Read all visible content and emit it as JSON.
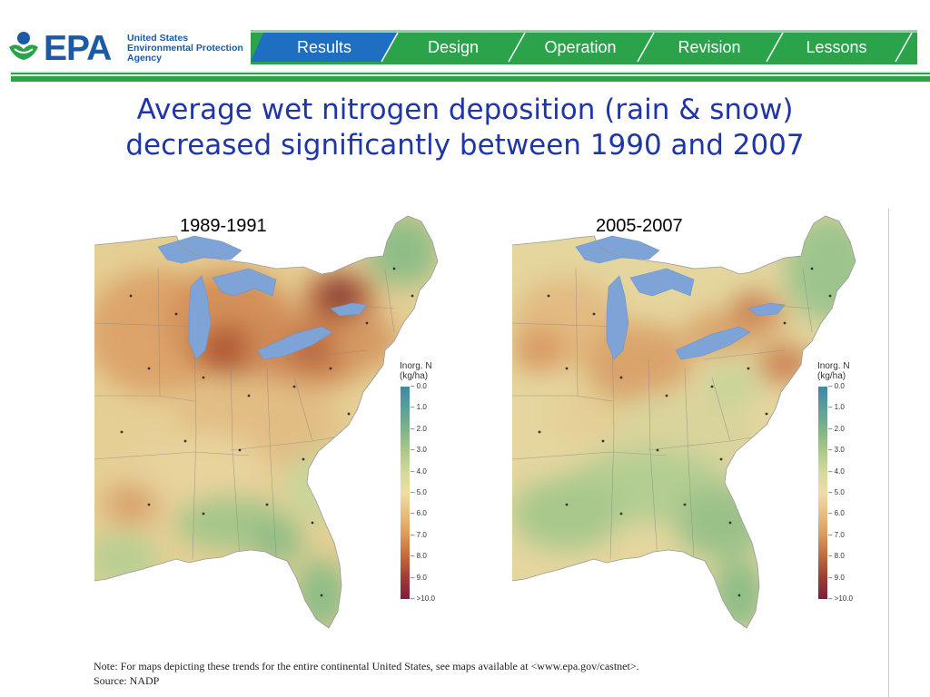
{
  "logo": {
    "word": "EPA",
    "lines": [
      "United States",
      "Environmental Protection",
      "Agency"
    ]
  },
  "nav": {
    "items": [
      "Results",
      "Design",
      "Operation",
      "Revision",
      "Lessons"
    ],
    "active_index": 0,
    "colors": {
      "active": "#1e6fc2",
      "inactive": "#2aa34a",
      "rule": "#2aa34a"
    }
  },
  "title": {
    "line1": "Average wet nitrogen deposition (rain & snow)",
    "line2": "decreased significantly between 1990 and 2007"
  },
  "maps": [
    {
      "label": "1989-1991"
    },
    {
      "label": "2005-2007"
    }
  ],
  "legend": {
    "title_line1": "Inorg. N",
    "title_line2": "(kg/ha)",
    "ticks": [
      "0.0",
      "1.0",
      "2.0",
      "3.0",
      "4.0",
      "5.0",
      "6.0",
      "7.0",
      "8.0",
      "9.0",
      ">10.0"
    ],
    "colors": [
      "#3f86a8",
      "#5a9f9a",
      "#7fb387",
      "#a8c88a",
      "#d3d99c",
      "#eedda6",
      "#e8bc80",
      "#d99a5a",
      "#bf6b3f",
      "#9d3d35",
      "#7c1f3a"
    ]
  },
  "note": {
    "line1": "Note:  For maps depicting these trends for the entire continental United States, see maps available at <www.epa.gov/castnet>.",
    "line2": "Source: NADP"
  }
}
